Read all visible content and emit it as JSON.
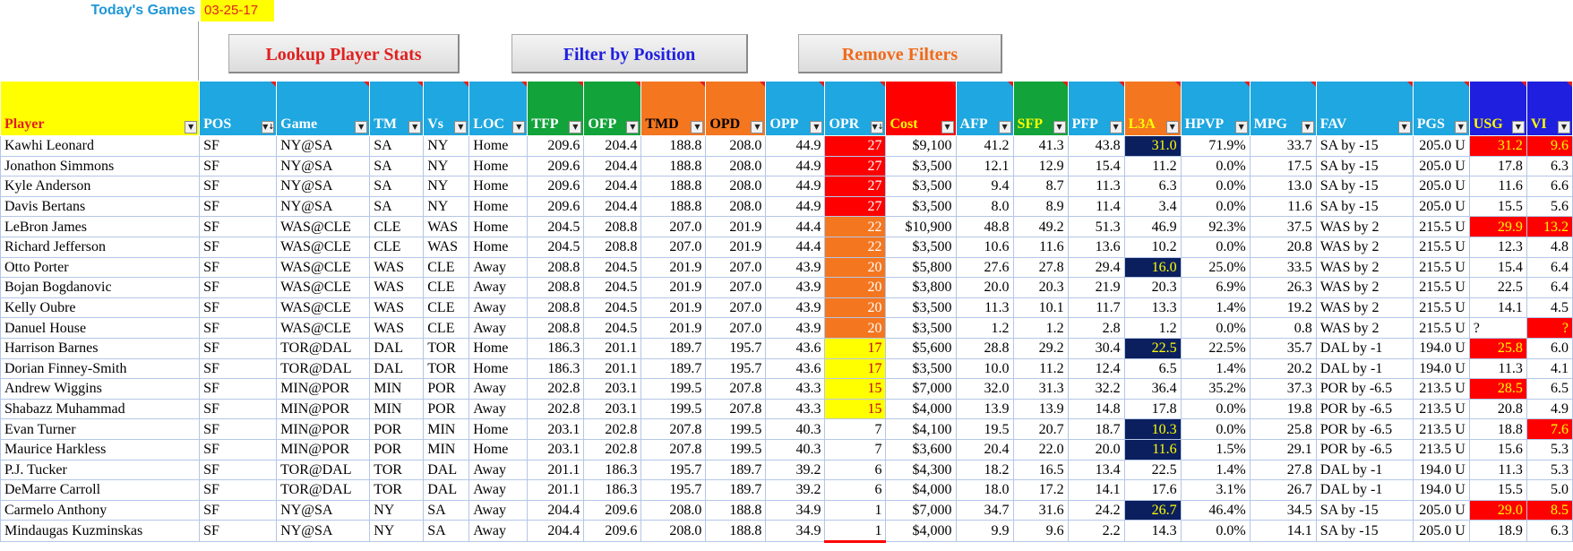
{
  "toolbar": {
    "todays_games_label": "Today's Games",
    "date": "03-25-17",
    "lookup_label": "Lookup Player Stats",
    "filter_label": "Filter by Position",
    "remove_label": "Remove Filters"
  },
  "columns": [
    {
      "key": "player",
      "label": "Player",
      "bg": "#ffff00",
      "fg": "#e0201f",
      "width": 222,
      "filter": "▼"
    },
    {
      "key": "pos",
      "label": "POS",
      "bg": "#1ea7e0",
      "fg": "#ffffff",
      "width": 86,
      "filter": "▼↓"
    },
    {
      "key": "game",
      "label": "Game",
      "bg": "#1ea7e0",
      "fg": "#ffffff",
      "width": 104,
      "filter": "▼"
    },
    {
      "key": "tm",
      "label": "TM",
      "bg": "#1ea7e0",
      "fg": "#ffffff",
      "width": 60,
      "filter": "▼"
    },
    {
      "key": "vs",
      "label": "Vs",
      "bg": "#1ea7e0",
      "fg": "#ffffff",
      "width": 51,
      "filter": "▼"
    },
    {
      "key": "loc",
      "label": "LOC",
      "bg": "#1ea7e0",
      "fg": "#ffffff",
      "width": 65,
      "filter": "▼"
    },
    {
      "key": "tfp",
      "label": "TFP",
      "bg": "#12a33a",
      "fg": "#ffffff",
      "width": 63,
      "filter": "▼"
    },
    {
      "key": "ofp",
      "label": "OFP",
      "bg": "#12a33a",
      "fg": "#ffffff",
      "width": 64,
      "filter": "▼"
    },
    {
      "key": "tmd",
      "label": "TMD",
      "bg": "#f4761f",
      "fg": "#000000",
      "width": 72,
      "filter": "▼"
    },
    {
      "key": "opd",
      "label": "OPD",
      "bg": "#f4761f",
      "fg": "#000000",
      "width": 67,
      "filter": "▼"
    },
    {
      "key": "opp",
      "label": "OPP",
      "bg": "#1ea7e0",
      "fg": "#ffffff",
      "width": 66,
      "filter": "▼"
    },
    {
      "key": "opr",
      "label": "OPR",
      "bg": "#1ea7e0",
      "fg": "#ffffff",
      "width": 68,
      "filter": "▼↓"
    },
    {
      "key": "cost",
      "label": "Cost",
      "bg": "#ff0000",
      "fg": "#ffff00",
      "width": 78,
      "filter": "▼"
    },
    {
      "key": "afp",
      "label": "AFP",
      "bg": "#1ea7e0",
      "fg": "#ffffff",
      "width": 64,
      "filter": "▼"
    },
    {
      "key": "sfp",
      "label": "SFP",
      "bg": "#12a33a",
      "fg": "#ffff00",
      "width": 61,
      "filter": "▼"
    },
    {
      "key": "pfp",
      "label": "PFP",
      "bg": "#1ea7e0",
      "fg": "#ffffff",
      "width": 63,
      "filter": "▼"
    },
    {
      "key": "l3a",
      "label": "L3A",
      "bg": "#f4761f",
      "fg": "#ffff00",
      "width": 63,
      "filter": "▼"
    },
    {
      "key": "hpvp",
      "label": "HPVP",
      "bg": "#1ea7e0",
      "fg": "#ffffff",
      "width": 77,
      "filter": "▼"
    },
    {
      "key": "mpg",
      "label": "MPG",
      "bg": "#1ea7e0",
      "fg": "#ffffff",
      "width": 74,
      "filter": "▼"
    },
    {
      "key": "fav",
      "label": "FAV",
      "bg": "#1ea7e0",
      "fg": "#ffffff",
      "width": 108,
      "filter": "▼"
    },
    {
      "key": "pgs",
      "label": "PGS",
      "bg": "#1ea7e0",
      "fg": "#ffffff",
      "width": 63,
      "filter": "▼"
    },
    {
      "key": "usg",
      "label": "USG",
      "bg": "#1f1fe0",
      "fg": "#ffff00",
      "width": 64,
      "filter": "▼"
    },
    {
      "key": "vi",
      "label": "VI",
      "bg": "#1f1fe0",
      "fg": "#ffff00",
      "width": 51,
      "filter": "▼"
    }
  ],
  "rows": [
    {
      "player": "Kawhi Leonard",
      "pos": "SF",
      "game": "NY@SA",
      "tm": "SA",
      "vs": "NY",
      "loc": "Home",
      "tfp": "209.6",
      "ofp": "204.4",
      "tmd": "188.8",
      "opd": "208.0",
      "opp": "44.9",
      "opr": "27",
      "cost": "$9,100",
      "afp": "41.2",
      "sfp": "41.3",
      "pfp": "43.8",
      "l3a": "31.0",
      "hpvp": "71.9%",
      "mpg": "33.7",
      "fav": "SA by -15",
      "pgs": "205.0 U",
      "usg": "31.2",
      "vi": "9.6",
      "opr_tier": "r27",
      "l3a_hi": true,
      "usg_hi": true,
      "vi_hi": true
    },
    {
      "player": "Jonathon Simmons",
      "pos": "SF",
      "game": "NY@SA",
      "tm": "SA",
      "vs": "NY",
      "loc": "Home",
      "tfp": "209.6",
      "ofp": "204.4",
      "tmd": "188.8",
      "opd": "208.0",
      "opp": "44.9",
      "opr": "27",
      "cost": "$3,500",
      "afp": "12.1",
      "sfp": "12.9",
      "pfp": "15.4",
      "l3a": "11.2",
      "hpvp": "0.0%",
      "mpg": "17.5",
      "fav": "SA by -15",
      "pgs": "205.0 U",
      "usg": "17.8",
      "vi": "6.3",
      "opr_tier": "r27"
    },
    {
      "player": "Kyle Anderson",
      "pos": "SF",
      "game": "NY@SA",
      "tm": "SA",
      "vs": "NY",
      "loc": "Home",
      "tfp": "209.6",
      "ofp": "204.4",
      "tmd": "188.8",
      "opd": "208.0",
      "opp": "44.9",
      "opr": "27",
      "cost": "$3,500",
      "afp": "9.4",
      "sfp": "8.7",
      "pfp": "11.3",
      "l3a": "6.3",
      "hpvp": "0.0%",
      "mpg": "13.0",
      "fav": "SA by -15",
      "pgs": "205.0 U",
      "usg": "11.6",
      "vi": "6.6",
      "opr_tier": "r27"
    },
    {
      "player": "Davis Bertans",
      "pos": "SF",
      "game": "NY@SA",
      "tm": "SA",
      "vs": "NY",
      "loc": "Home",
      "tfp": "209.6",
      "ofp": "204.4",
      "tmd": "188.8",
      "opd": "208.0",
      "opp": "44.9",
      "opr": "27",
      "cost": "$3,500",
      "afp": "8.0",
      "sfp": "8.9",
      "pfp": "11.4",
      "l3a": "3.4",
      "hpvp": "0.0%",
      "mpg": "11.6",
      "fav": "SA by -15",
      "pgs": "205.0 U",
      "usg": "15.5",
      "vi": "5.6",
      "opr_tier": "r27"
    },
    {
      "player": "LeBron James",
      "pos": "SF",
      "game": "WAS@CLE",
      "tm": "CLE",
      "vs": "WAS",
      "loc": "Home",
      "tfp": "204.5",
      "ofp": "208.8",
      "tmd": "207.0",
      "opd": "201.9",
      "opp": "44.4",
      "opr": "22",
      "cost": "$10,900",
      "afp": "48.8",
      "sfp": "49.2",
      "pfp": "51.3",
      "l3a": "46.9",
      "hpvp": "92.3%",
      "mpg": "37.5",
      "fav": "WAS by 2",
      "pgs": "215.5 U",
      "usg": "29.9",
      "vi": "13.2",
      "opr_tier": "o22",
      "usg_hi": true,
      "vi_hi": true
    },
    {
      "player": "Richard Jefferson",
      "pos": "SF",
      "game": "WAS@CLE",
      "tm": "CLE",
      "vs": "WAS",
      "loc": "Home",
      "tfp": "204.5",
      "ofp": "208.8",
      "tmd": "207.0",
      "opd": "201.9",
      "opp": "44.4",
      "opr": "22",
      "cost": "$3,500",
      "afp": "10.6",
      "sfp": "11.6",
      "pfp": "13.6",
      "l3a": "10.2",
      "hpvp": "0.0%",
      "mpg": "20.8",
      "fav": "WAS by 2",
      "pgs": "215.5 U",
      "usg": "12.3",
      "vi": "4.8",
      "opr_tier": "o22"
    },
    {
      "player": "Otto Porter",
      "pos": "SF",
      "game": "WAS@CLE",
      "tm": "WAS",
      "vs": "CLE",
      "loc": "Away",
      "tfp": "208.8",
      "ofp": "204.5",
      "tmd": "201.9",
      "opd": "207.0",
      "opp": "43.9",
      "opr": "20",
      "cost": "$5,800",
      "afp": "27.6",
      "sfp": "27.8",
      "pfp": "29.4",
      "l3a": "16.0",
      "hpvp": "25.0%",
      "mpg": "33.5",
      "fav": "WAS by 2",
      "pgs": "215.5 U",
      "usg": "15.4",
      "vi": "6.4",
      "opr_tier": "o22",
      "l3a_hi": true
    },
    {
      "player": "Bojan Bogdanovic",
      "pos": "SF",
      "game": "WAS@CLE",
      "tm": "WAS",
      "vs": "CLE",
      "loc": "Away",
      "tfp": "208.8",
      "ofp": "204.5",
      "tmd": "201.9",
      "opd": "207.0",
      "opp": "43.9",
      "opr": "20",
      "cost": "$3,800",
      "afp": "20.0",
      "sfp": "20.3",
      "pfp": "21.9",
      "l3a": "20.3",
      "hpvp": "6.9%",
      "mpg": "26.3",
      "fav": "WAS by 2",
      "pgs": "215.5 U",
      "usg": "22.5",
      "vi": "6.4",
      "opr_tier": "o22"
    },
    {
      "player": "Kelly Oubre",
      "pos": "SF",
      "game": "WAS@CLE",
      "tm": "WAS",
      "vs": "CLE",
      "loc": "Away",
      "tfp": "208.8",
      "ofp": "204.5",
      "tmd": "201.9",
      "opd": "207.0",
      "opp": "43.9",
      "opr": "20",
      "cost": "$3,500",
      "afp": "11.3",
      "sfp": "10.1",
      "pfp": "11.7",
      "l3a": "13.3",
      "hpvp": "1.4%",
      "mpg": "19.2",
      "fav": "WAS by 2",
      "pgs": "215.5 U",
      "usg": "14.1",
      "vi": "4.5",
      "opr_tier": "o22"
    },
    {
      "player": "Danuel House",
      "pos": "SF",
      "game": "WAS@CLE",
      "tm": "WAS",
      "vs": "CLE",
      "loc": "Away",
      "tfp": "208.8",
      "ofp": "204.5",
      "tmd": "201.9",
      "opd": "207.0",
      "opp": "43.9",
      "opr": "20",
      "cost": "$3,500",
      "afp": "1.2",
      "sfp": "1.2",
      "pfp": "2.8",
      "l3a": "1.2",
      "hpvp": "0.0%",
      "mpg": "0.8",
      "fav": "WAS by 2",
      "pgs": "215.5 U",
      "usg": "?",
      "vi": "?",
      "opr_tier": "o22",
      "vi_hi": true,
      "usg_left": true
    },
    {
      "player": "Harrison Barnes",
      "pos": "SF",
      "game": "TOR@DAL",
      "tm": "DAL",
      "vs": "TOR",
      "loc": "Home",
      "tfp": "186.3",
      "ofp": "201.1",
      "tmd": "189.7",
      "opd": "195.7",
      "opp": "43.6",
      "opr": "17",
      "cost": "$5,600",
      "afp": "28.8",
      "sfp": "29.2",
      "pfp": "30.4",
      "l3a": "22.5",
      "hpvp": "22.5%",
      "mpg": "35.7",
      "fav": "DAL by -1",
      "pgs": "194.0 U",
      "usg": "25.8",
      "vi": "6.0",
      "opr_tier": "y17",
      "l3a_hi": true,
      "usg_hi": true
    },
    {
      "player": "Dorian Finney-Smith",
      "pos": "SF",
      "game": "TOR@DAL",
      "tm": "DAL",
      "vs": "TOR",
      "loc": "Home",
      "tfp": "186.3",
      "ofp": "201.1",
      "tmd": "189.7",
      "opd": "195.7",
      "opp": "43.6",
      "opr": "17",
      "cost": "$3,500",
      "afp": "10.0",
      "sfp": "11.2",
      "pfp": "12.4",
      "l3a": "6.5",
      "hpvp": "1.4%",
      "mpg": "20.2",
      "fav": "DAL by -1",
      "pgs": "194.0 U",
      "usg": "11.3",
      "vi": "4.1",
      "opr_tier": "y17"
    },
    {
      "player": "Andrew Wiggins",
      "pos": "SF",
      "game": "MIN@POR",
      "tm": "MIN",
      "vs": "POR",
      "loc": "Away",
      "tfp": "202.8",
      "ofp": "203.1",
      "tmd": "199.5",
      "opd": "207.8",
      "opp": "43.3",
      "opr": "15",
      "cost": "$7,000",
      "afp": "32.0",
      "sfp": "31.3",
      "pfp": "32.2",
      "l3a": "36.4",
      "hpvp": "35.2%",
      "mpg": "37.3",
      "fav": "POR by -6.5",
      "pgs": "213.5 U",
      "usg": "28.5",
      "vi": "6.5",
      "opr_tier": "y17",
      "usg_hi": true
    },
    {
      "player": "Shabazz Muhammad",
      "pos": "SF",
      "game": "MIN@POR",
      "tm": "MIN",
      "vs": "POR",
      "loc": "Away",
      "tfp": "202.8",
      "ofp": "203.1",
      "tmd": "199.5",
      "opd": "207.8",
      "opp": "43.3",
      "opr": "15",
      "cost": "$4,000",
      "afp": "13.9",
      "sfp": "13.9",
      "pfp": "14.8",
      "l3a": "17.8",
      "hpvp": "0.0%",
      "mpg": "19.8",
      "fav": "POR by -6.5",
      "pgs": "213.5 U",
      "usg": "20.8",
      "vi": "4.9",
      "opr_tier": "y17"
    },
    {
      "player": "Evan Turner",
      "pos": "SF",
      "game": "MIN@POR",
      "tm": "POR",
      "vs": "MIN",
      "loc": "Home",
      "tfp": "203.1",
      "ofp": "202.8",
      "tmd": "207.8",
      "opd": "199.5",
      "opp": "40.3",
      "opr": "7",
      "cost": "$4,100",
      "afp": "19.5",
      "sfp": "20.7",
      "pfp": "18.7",
      "l3a": "10.3",
      "hpvp": "0.0%",
      "mpg": "25.8",
      "fav": "POR by -6.5",
      "pgs": "213.5 U",
      "usg": "18.8",
      "vi": "7.6",
      "opr_tier": "",
      "l3a_hi": true,
      "vi_hi": true
    },
    {
      "player": "Maurice Harkless",
      "pos": "SF",
      "game": "MIN@POR",
      "tm": "POR",
      "vs": "MIN",
      "loc": "Home",
      "tfp": "203.1",
      "ofp": "202.8",
      "tmd": "207.8",
      "opd": "199.5",
      "opp": "40.3",
      "opr": "7",
      "cost": "$3,600",
      "afp": "20.4",
      "sfp": "22.0",
      "pfp": "20.0",
      "l3a": "11.6",
      "hpvp": "1.5%",
      "mpg": "29.1",
      "fav": "POR by -6.5",
      "pgs": "213.5 U",
      "usg": "15.6",
      "vi": "5.3",
      "opr_tier": "",
      "l3a_hi": true
    },
    {
      "player": "P.J. Tucker",
      "pos": "SF",
      "game": "TOR@DAL",
      "tm": "TOR",
      "vs": "DAL",
      "loc": "Away",
      "tfp": "201.1",
      "ofp": "186.3",
      "tmd": "195.7",
      "opd": "189.7",
      "opp": "39.2",
      "opr": "6",
      "cost": "$4,300",
      "afp": "18.2",
      "sfp": "16.5",
      "pfp": "13.4",
      "l3a": "22.5",
      "hpvp": "1.4%",
      "mpg": "27.8",
      "fav": "DAL by -1",
      "pgs": "194.0 U",
      "usg": "11.3",
      "vi": "5.3",
      "opr_tier": ""
    },
    {
      "player": "DeMarre Carroll",
      "pos": "SF",
      "game": "TOR@DAL",
      "tm": "TOR",
      "vs": "DAL",
      "loc": "Away",
      "tfp": "201.1",
      "ofp": "186.3",
      "tmd": "195.7",
      "opd": "189.7",
      "opp": "39.2",
      "opr": "6",
      "cost": "$4,000",
      "afp": "18.0",
      "sfp": "17.2",
      "pfp": "14.1",
      "l3a": "17.6",
      "hpvp": "3.1%",
      "mpg": "26.7",
      "fav": "DAL by -1",
      "pgs": "194.0 U",
      "usg": "15.5",
      "vi": "5.0",
      "opr_tier": ""
    },
    {
      "player": "Carmelo Anthony",
      "pos": "SF",
      "game": "NY@SA",
      "tm": "NY",
      "vs": "SA",
      "loc": "Away",
      "tfp": "204.4",
      "ofp": "209.6",
      "tmd": "208.0",
      "opd": "188.8",
      "opp": "34.9",
      "opr": "1",
      "cost": "$7,000",
      "afp": "34.7",
      "sfp": "31.6",
      "pfp": "24.2",
      "l3a": "26.7",
      "hpvp": "46.4%",
      "mpg": "34.5",
      "fav": "SA by -15",
      "pgs": "205.0 U",
      "usg": "29.0",
      "vi": "8.5",
      "opr_tier": "",
      "l3a_hi": true,
      "usg_hi": true,
      "vi_hi": true
    },
    {
      "player": "Mindaugas Kuzminskas",
      "pos": "SF",
      "game": "NY@SA",
      "tm": "NY",
      "vs": "SA",
      "loc": "Away",
      "tfp": "204.4",
      "ofp": "209.6",
      "tmd": "208.0",
      "opd": "188.8",
      "opp": "34.9",
      "opr": "1",
      "cost": "$4,000",
      "afp": "9.9",
      "sfp": "9.6",
      "pfp": "2.2",
      "l3a": "14.3",
      "hpvp": "0.0%",
      "mpg": "14.1",
      "fav": "SA by -15",
      "pgs": "205.0 U",
      "usg": "18.9",
      "vi": "6.3",
      "opr_tier": "",
      "opr_underline": true
    }
  ]
}
